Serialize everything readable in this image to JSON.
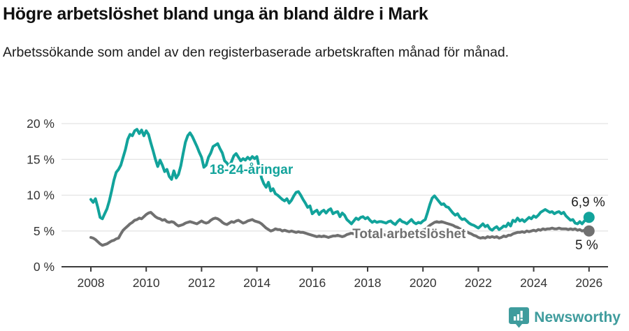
{
  "header": {
    "title": "Högre arbetslöshet bland unga än bland äldre i Mark",
    "subtitle": "Arbetssökande som andel av den registerbaserade arbetskraften månad för månad."
  },
  "footer": {
    "brand": "Newsworthy",
    "logo_color": "#3F9C9D"
  },
  "chart_data": {
    "type": "line",
    "title": "Högre arbetslöshet bland unga än bland äldre i Mark",
    "subtitle": "Arbetssökande som andel av den registerbaserade arbetskraften månad för månad.",
    "grid": "horizontal-only",
    "legend_position": "inline-labels",
    "x_axis": {
      "start_year": 2008,
      "step_months": 1,
      "end_year": 2026,
      "tick_years": [
        2008,
        2010,
        2012,
        2014,
        2016,
        2018,
        2020,
        2022,
        2024,
        2026
      ]
    },
    "y_axis": {
      "min": 0,
      "max": 20,
      "unit": "%",
      "tick_values": [
        0,
        5,
        10,
        15,
        20
      ],
      "tick_labels": [
        "0 %",
        "5 %",
        "10 %",
        "15 %",
        "20 %"
      ]
    },
    "colors": {
      "youth": "#12A39B",
      "total": "#707070",
      "grid": "#e3e3e3",
      "axis": "#3c3c3c",
      "text": "#333333"
    },
    "series": [
      {
        "name": "Total arbetslöshet",
        "color": "#707070",
        "end_value": 5.0,
        "end_label": "5 %",
        "label_pos": {
          "year": 2017.45,
          "value": 4.0
        },
        "end_label_offset": [
          13,
          26
        ],
        "values": [
          4.1,
          4.0,
          3.8,
          3.5,
          3.2,
          3.0,
          3.1,
          3.2,
          3.4,
          3.6,
          3.7,
          3.9,
          4.0,
          4.6,
          5.1,
          5.4,
          5.7,
          6.0,
          6.2,
          6.5,
          6.6,
          6.8,
          6.7,
          7.0,
          7.3,
          7.5,
          7.6,
          7.3,
          7.0,
          6.8,
          6.7,
          6.5,
          6.6,
          6.3,
          6.2,
          6.3,
          6.2,
          5.9,
          5.7,
          5.8,
          5.9,
          6.1,
          6.2,
          6.3,
          6.2,
          6.1,
          6.0,
          6.2,
          6.4,
          6.2,
          6.1,
          6.2,
          6.5,
          6.7,
          6.8,
          6.7,
          6.5,
          6.2,
          6.0,
          5.9,
          6.1,
          6.3,
          6.2,
          6.4,
          6.5,
          6.3,
          6.1,
          6.2,
          6.4,
          6.5,
          6.6,
          6.4,
          6.3,
          6.2,
          6.0,
          5.7,
          5.4,
          5.2,
          5.0,
          5.1,
          5.3,
          5.2,
          5.2,
          5.0,
          5.1,
          5.0,
          4.9,
          5.0,
          4.9,
          4.8,
          4.9,
          4.8,
          4.8,
          4.7,
          4.6,
          4.5,
          4.4,
          4.3,
          4.2,
          4.3,
          4.2,
          4.3,
          4.2,
          4.1,
          4.2,
          4.3,
          4.3,
          4.4,
          4.3,
          4.2,
          4.3,
          4.5,
          4.6,
          4.7,
          4.6,
          4.5,
          4.6,
          4.5,
          4.4,
          4.5,
          4.6,
          4.5,
          4.4,
          4.5,
          4.4,
          4.3,
          4.4,
          4.5,
          4.4,
          4.5,
          4.6,
          4.5,
          4.6,
          4.7,
          4.6,
          4.7,
          4.8,
          4.7,
          4.8,
          4.9,
          4.8,
          4.9,
          5.0,
          5.0,
          5.1,
          5.2,
          5.5,
          5.8,
          6.0,
          6.2,
          6.3,
          6.2,
          6.3,
          6.2,
          6.1,
          6.0,
          5.9,
          5.8,
          5.6,
          5.5,
          5.3,
          5.2,
          5.0,
          4.9,
          4.7,
          4.6,
          4.4,
          4.3,
          4.1,
          4.0,
          4.1,
          4.0,
          4.2,
          4.1,
          4.2,
          4.1,
          4.2,
          4.0,
          4.1,
          4.3,
          4.2,
          4.4,
          4.4,
          4.6,
          4.7,
          4.8,
          4.8,
          4.9,
          4.8,
          5.0,
          4.9,
          5.0,
          5.1,
          5.0,
          5.2,
          5.1,
          5.3,
          5.2,
          5.3,
          5.3,
          5.4,
          5.3,
          5.3,
          5.4,
          5.3,
          5.3,
          5.3,
          5.2,
          5.3,
          5.2,
          5.3,
          5.1,
          5.2,
          5.0,
          5.1,
          4.9,
          5.0
        ]
      },
      {
        "name": "18-24-åringar",
        "color": "#12A39B",
        "end_value": 6.9,
        "end_label": "6,9 %",
        "label_pos": {
          "year": 2012.29,
          "value": 13.0
        },
        "end_label_offset": [
          23,
          -16
        ],
        "values": [
          9.4,
          9.0,
          9.5,
          8.3,
          6.9,
          6.7,
          7.4,
          8.1,
          9.2,
          10.6,
          12.1,
          13.2,
          13.6,
          14.2,
          15.3,
          16.4,
          17.8,
          18.5,
          18.3,
          19.0,
          19.2,
          18.6,
          19.1,
          18.3,
          19.0,
          18.5,
          17.3,
          16.2,
          15.0,
          14.0,
          14.9,
          14.2,
          13.3,
          13.6,
          12.6,
          12.2,
          13.4,
          12.4,
          12.9,
          14.1,
          15.8,
          17.4,
          18.3,
          18.7,
          18.2,
          17.5,
          16.8,
          16.0,
          15.3,
          13.9,
          14.2,
          15.3,
          15.9,
          16.8,
          17.0,
          17.2,
          16.5,
          15.9,
          14.8,
          14.5,
          14.0,
          14.7,
          15.5,
          15.8,
          15.3,
          14.8,
          15.1,
          14.9,
          15.3,
          15.0,
          15.4,
          15.1,
          15.4,
          13.9,
          12.4,
          11.6,
          11.1,
          11.8,
          10.6,
          10.9,
          10.2,
          10.0,
          9.7,
          9.4,
          9.2,
          9.5,
          8.9,
          9.3,
          9.9,
          10.4,
          10.5,
          10.0,
          9.4,
          8.9,
          8.3,
          8.5,
          7.4,
          7.7,
          7.9,
          7.3,
          7.7,
          7.9,
          7.5,
          7.9,
          8.1,
          7.4,
          7.6,
          7.7,
          7.0,
          7.5,
          7.2,
          6.6,
          6.3,
          6.0,
          6.4,
          6.8,
          6.6,
          6.9,
          7.0,
          6.7,
          6.9,
          6.5,
          6.2,
          6.4,
          6.2,
          6.3,
          6.3,
          6.2,
          6.1,
          6.3,
          6.4,
          6.1,
          5.9,
          6.3,
          6.6,
          6.3,
          6.2,
          6.0,
          6.3,
          6.6,
          6.2,
          6.0,
          6.2,
          6.1,
          6.4,
          6.6,
          7.6,
          8.7,
          9.6,
          9.9,
          9.5,
          9.1,
          8.7,
          8.8,
          8.4,
          8.3,
          7.9,
          7.5,
          7.2,
          7.4,
          6.9,
          6.6,
          6.7,
          6.4,
          6.1,
          5.9,
          5.8,
          5.6,
          5.4,
          5.7,
          6.0,
          5.6,
          5.8,
          5.3,
          5.1,
          5.4,
          5.6,
          5.2,
          5.4,
          5.7,
          5.6,
          6.1,
          5.7,
          6.5,
          6.3,
          6.8,
          6.4,
          6.6,
          6.3,
          6.6,
          6.9,
          6.7,
          7.1,
          6.9,
          7.2,
          7.6,
          7.8,
          8.0,
          7.8,
          7.6,
          7.7,
          7.4,
          7.6,
          7.7,
          7.4,
          7.6,
          7.1,
          6.8,
          6.5,
          6.6,
          6.1,
          6.0,
          6.3,
          6.0,
          6.4,
          6.6,
          6.9
        ]
      }
    ]
  }
}
